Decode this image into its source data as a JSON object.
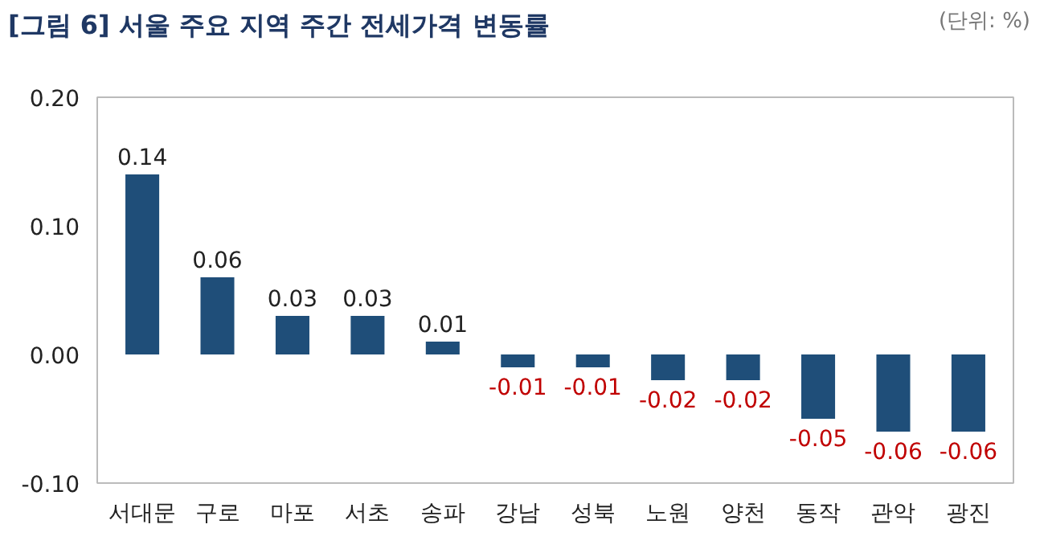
{
  "chart_data": {
    "type": "bar",
    "title": "[그림 6] 서울 주요 지역 주간 전세가격 변동률",
    "annotations": [
      "(단위: %)"
    ],
    "categories": [
      "서대문",
      "구로",
      "마포",
      "서초",
      "송파",
      "강남",
      "성북",
      "노원",
      "양천",
      "동작",
      "관악",
      "광진"
    ],
    "values": [
      0.14,
      0.06,
      0.03,
      0.03,
      0.01,
      -0.01,
      -0.01,
      -0.02,
      -0.02,
      -0.05,
      -0.06,
      -0.06
    ],
    "color": "#1f4e79",
    "ylim": [
      -0.1,
      0.2
    ],
    "yticks": [
      {
        "value": -0.1,
        "label": "-0.10"
      },
      {
        "value": 0,
        "label": "0.00"
      },
      {
        "value": 0.1,
        "label": "0.10"
      },
      {
        "value": 0.2,
        "label": "0.20"
      }
    ],
    "data_labels": true,
    "grid": false
  }
}
